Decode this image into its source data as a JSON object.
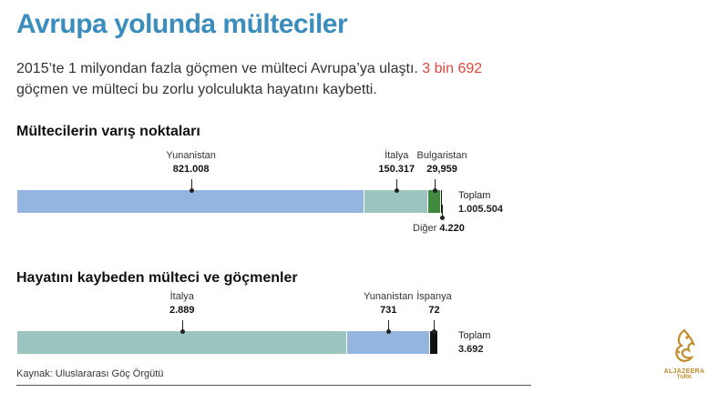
{
  "title": "Avrupa yolunda mülteciler",
  "intro": {
    "part1": "2015’te 1 milyondan fazla göçmen ve mülteci Avrupa’ya ulaştı. ",
    "highlight": "3 bin 692",
    "part2": "göçmen ve mülteci bu zorlu yolculukta hayatını kaybetti."
  },
  "colors": {
    "title": "#3a8dbc",
    "blue": "#93b5df",
    "teal": "#9cc5bf",
    "green": "#3f8a3d",
    "black": "#111111",
    "highlight": "#e0463b"
  },
  "chart_data": [
    {
      "type": "bar",
      "title": "Mültecilerin varış noktaları",
      "categories": [
        "Yunanistan",
        "İtalya",
        "Bulgaristan",
        "Diğer"
      ],
      "values": [
        821008,
        150317,
        29959,
        4220
      ],
      "value_labels": [
        "821.008",
        "150.317",
        "29,959",
        "4.220"
      ],
      "total_label": "Toplam",
      "total": "1.005.504"
    },
    {
      "type": "bar",
      "title": "Hayatını kaybeden mülteci ve göçmenler",
      "categories": [
        "İtalya",
        "Yunanistan",
        "İspanya"
      ],
      "values": [
        2889,
        731,
        72
      ],
      "value_labels": [
        "2.889",
        "731",
        "72"
      ],
      "total_label": "Toplam",
      "total": "3.692"
    }
  ],
  "source": "Kaynak: Uluslararası Göç Örgütü",
  "logo": {
    "line1": "ALJAZEERA",
    "line2": "TURK"
  }
}
